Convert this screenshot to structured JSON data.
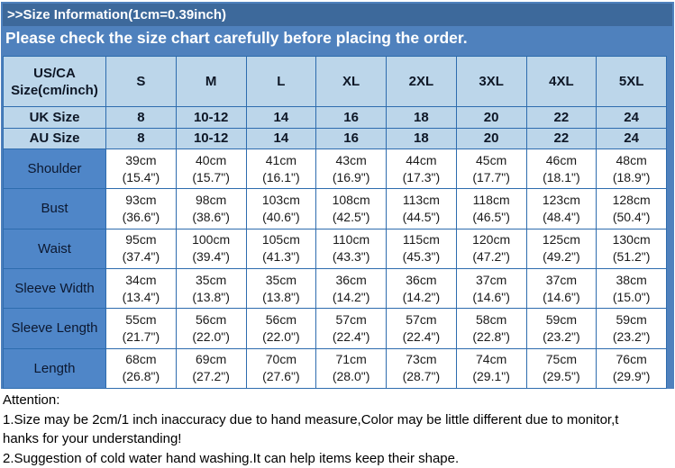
{
  "banner": {
    "title": ">>Size Information(1cm=0.39inch)",
    "subtitle": "Please check the size chart carefully before placing the order."
  },
  "colors": {
    "banner_blue": "#4f81bd",
    "title_stripe_blue": "#3d699b",
    "header_cell_blue": "#bcd6ea",
    "label_cell_blue": "#4f86c8",
    "cell_border_blue": "#2e6cae",
    "banner_text": "#ffffff",
    "table_text_dark": "#0e1726",
    "data_text": "#1a1a1a"
  },
  "table": {
    "corner_line1": "US/CA",
    "corner_line2": "Size(cm/inch)",
    "sizes": [
      "S",
      "M",
      "L",
      "XL",
      "2XL",
      "3XL",
      "4XL",
      "5XL"
    ],
    "uk_row": {
      "label": "UK Size",
      "values": [
        "8",
        "10-12",
        "14",
        "16",
        "18",
        "20",
        "22",
        "24"
      ]
    },
    "au_row": {
      "label": "AU Size",
      "values": [
        "8",
        "10-12",
        "14",
        "16",
        "18",
        "20",
        "22",
        "24"
      ]
    },
    "rows": [
      {
        "label": "Shoulder",
        "cm": [
          "39cm",
          "40cm",
          "41cm",
          "43cm",
          "44cm",
          "45cm",
          "46cm",
          "48cm"
        ],
        "inch": [
          "(15.4\")",
          "(15.7\")",
          "(16.1\")",
          "(16.9\")",
          "(17.3\")",
          "(17.7\")",
          "(18.1\")",
          "(18.9\")"
        ]
      },
      {
        "label": "Bust",
        "cm": [
          "93cm",
          "98cm",
          "103cm",
          "108cm",
          "113cm",
          "118cm",
          "123cm",
          "128cm"
        ],
        "inch": [
          "(36.6\")",
          "(38.6\")",
          "(40.6\")",
          "(42.5\")",
          "(44.5\")",
          "(46.5\")",
          "(48.4\")",
          "(50.4\")"
        ]
      },
      {
        "label": "Waist",
        "cm": [
          "95cm",
          "100cm",
          "105cm",
          "110cm",
          "115cm",
          "120cm",
          "125cm",
          "130cm"
        ],
        "inch": [
          "(37.4\")",
          "(39.4\")",
          "(41.3\")",
          "(43.3\")",
          "(45.3\")",
          "(47.2\")",
          "(49.2\")",
          "(51.2\")"
        ]
      },
      {
        "label": "Sleeve Width",
        "cm": [
          "34cm",
          "35cm",
          "35cm",
          "36cm",
          "36cm",
          "37cm",
          "37cm",
          "38cm"
        ],
        "inch": [
          "(13.4\")",
          "(13.8\")",
          "(13.8\")",
          "(14.2\")",
          "(14.2\")",
          "(14.6\")",
          "(14.6\")",
          "(15.0\")"
        ]
      },
      {
        "label": "Sleeve Length",
        "cm": [
          "55cm",
          "56cm",
          "56cm",
          "57cm",
          "57cm",
          "58cm",
          "59cm",
          "59cm"
        ],
        "inch": [
          "(21.7\")",
          "(22.0\")",
          "(22.0\")",
          "(22.4\")",
          "(22.4\")",
          "(22.8\")",
          "(23.2\")",
          "(23.2\")"
        ]
      },
      {
        "label": "Length",
        "cm": [
          "68cm",
          "69cm",
          "70cm",
          "71cm",
          "73cm",
          "74cm",
          "75cm",
          "76cm"
        ],
        "inch": [
          "(26.8\")",
          "(27.2\")",
          "(27.6\")",
          "(28.0\")",
          "(28.7\")",
          "(29.1\")",
          "(29.5\")",
          "(29.9\")"
        ]
      }
    ]
  },
  "attention": {
    "lines": [
      "Attention:",
      "1.Size may be 2cm/1 inch inaccuracy due to hand measure,Color may be little different due to monitor,t",
      "hanks for your understanding!",
      "2.Suggestion of cold water hand washing.It can help items keep their shape."
    ]
  }
}
